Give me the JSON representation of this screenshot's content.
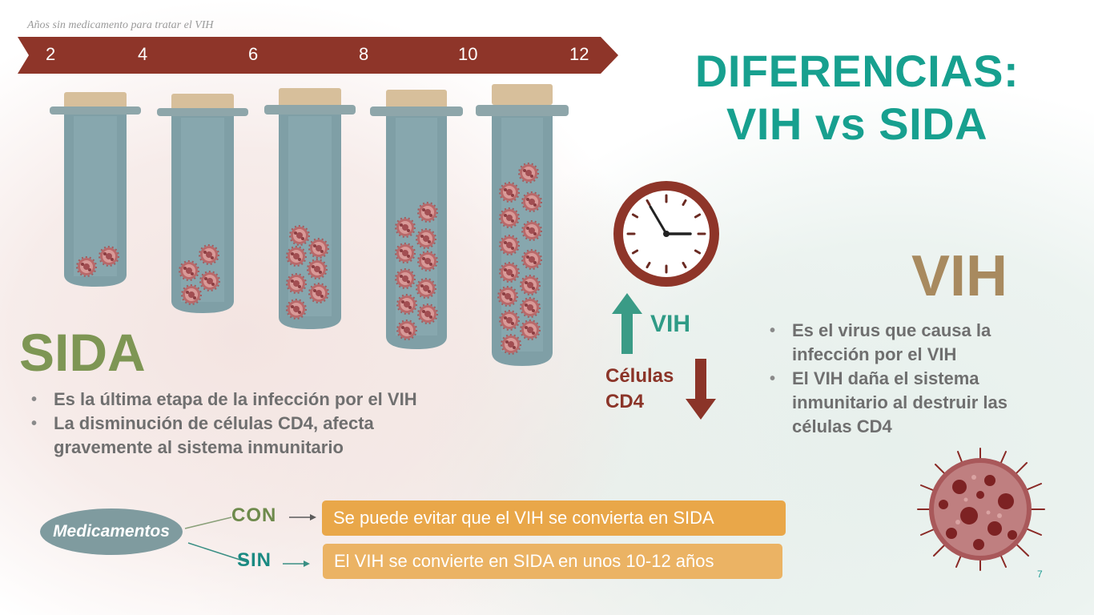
{
  "timeline": {
    "caption": "Años sin medicamento para tratar el VIH",
    "ticks": [
      "2",
      "4",
      "6",
      "8",
      "10",
      "12"
    ]
  },
  "title": {
    "line1": "DIFERENCIAS:",
    "line2": "VIH vs SIDA"
  },
  "sida": {
    "heading": "SIDA",
    "bullets": [
      "Es la última etapa de la infección por el VIH",
      "La disminución de células CD4, afecta gravemente al sistema inmunitario"
    ]
  },
  "vih": {
    "heading": "VIH",
    "bullets": [
      "Es el virus que causa la infección por el VIH",
      "El VIH daña el sistema inmunitario al destruir las células CD4"
    ]
  },
  "indicators": {
    "vih_up": "VIH",
    "cd4_line1": "Células",
    "cd4_line2": "CD4"
  },
  "medication": {
    "label": "Medicamentos",
    "con_label": "CON",
    "sin_label": "SIN",
    "con_result": "Se puede evitar que el VIH se convierta en SIDA",
    "sin_result": "El VIH se convierte en SIDA en unos 10-12 años"
  },
  "page_number": "7",
  "colors": {
    "teal": "#17a08f",
    "olive": "#7e9654",
    "khaki": "#a88a5f",
    "maroon": "#8b3428",
    "orange": "#e9a749"
  },
  "icons": [
    "clock-icon",
    "up-arrow-icon",
    "down-arrow-icon",
    "virus-icon",
    "test-tube-icon"
  ]
}
